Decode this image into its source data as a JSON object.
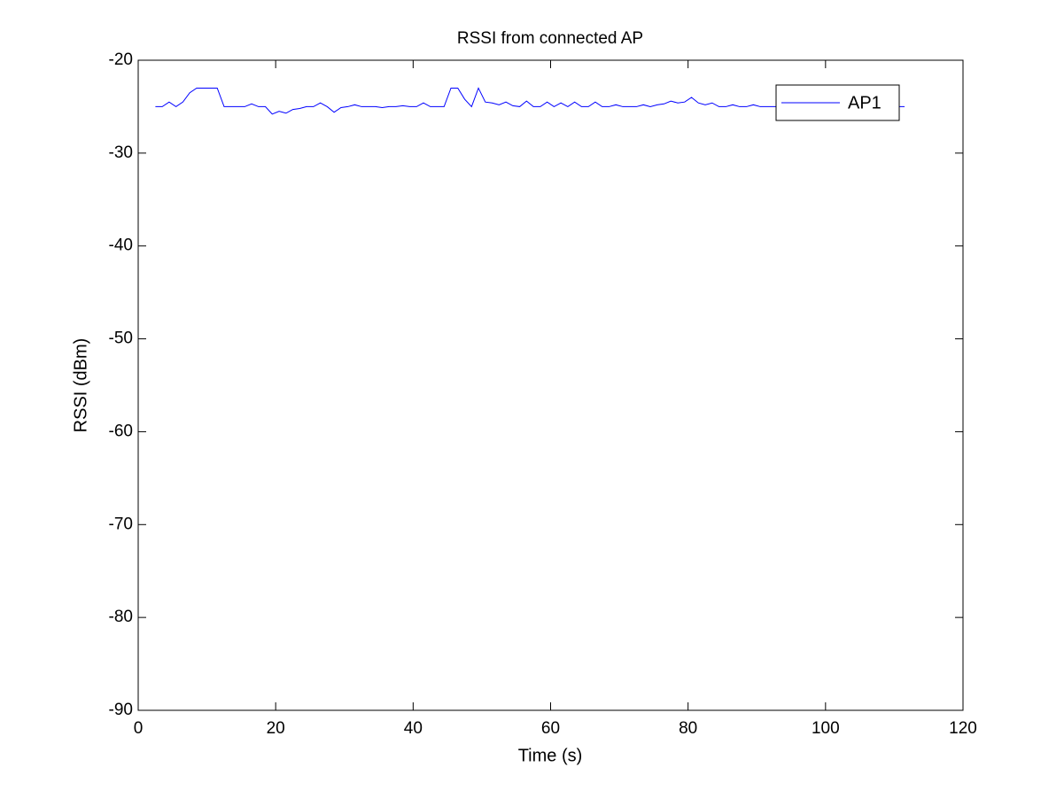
{
  "chart_data": {
    "type": "line",
    "title": "RSSI from connected AP",
    "xlabel": "Time (s)",
    "ylabel": "RSSI (dBm)",
    "x": [
      2.5,
      3.5,
      4.5,
      5.5,
      6.5,
      7.5,
      8.5,
      9.5,
      10.5,
      11.5,
      12.5,
      13.5,
      14.5,
      15.5,
      16.5,
      17.5,
      18.5,
      19.5,
      20.5,
      21.5,
      22.5,
      23.5,
      24.5,
      25.5,
      26.5,
      27.5,
      28.5,
      29.5,
      30.5,
      31.5,
      32.5,
      33.5,
      34.5,
      35.5,
      36.5,
      37.5,
      38.5,
      39.5,
      40.5,
      41.5,
      42.5,
      43.5,
      44.5,
      45.5,
      46.5,
      47.5,
      48.5,
      49.5,
      50.5,
      51.5,
      52.5,
      53.5,
      54.5,
      55.5,
      56.5,
      57.5,
      58.5,
      59.5,
      60.5,
      61.5,
      62.5,
      63.5,
      64.5,
      65.5,
      66.5,
      67.5,
      68.5,
      69.5,
      70.5,
      71.5,
      72.5,
      73.5,
      74.5,
      75.5,
      76.5,
      77.5,
      78.5,
      79.5,
      80.5,
      81.5,
      82.5,
      83.5,
      84.5,
      85.5,
      86.5,
      87.5,
      88.5,
      89.5,
      90.5,
      91.5,
      92.5,
      93.5,
      94.5,
      95.5,
      96.5,
      97.5,
      98.5,
      99.5,
      100.5,
      101.5,
      102.5,
      103.5,
      104.5,
      105.5,
      106.5,
      107.5,
      108.5,
      109.5,
      110.5,
      111.5
    ],
    "series": [
      {
        "name": "AP1",
        "color": "#0000ff",
        "values": [
          -25,
          -25,
          -24.5,
          -25,
          -24.5,
          -23.5,
          -23,
          -23,
          -23,
          -23,
          -25,
          -25,
          -25,
          -25,
          -24.7,
          -25,
          -25,
          -25.8,
          -25.5,
          -25.7,
          -25.3,
          -25.2,
          -25,
          -25,
          -24.6,
          -25,
          -25.6,
          -25.1,
          -25,
          -24.8,
          -25,
          -25,
          -25,
          -25.1,
          -25,
          -25,
          -24.9,
          -25,
          -25,
          -24.6,
          -25,
          -25,
          -25,
          -23,
          -23,
          -24.2,
          -25,
          -23,
          -24.5,
          -24.6,
          -24.8,
          -24.5,
          -24.9,
          -25,
          -24.4,
          -25,
          -25,
          -24.5,
          -25,
          -24.6,
          -25,
          -24.5,
          -25,
          -25,
          -24.5,
          -25,
          -25,
          -24.8,
          -25,
          -25,
          -25,
          -24.8,
          -25,
          -24.8,
          -24.7,
          -24.4,
          -24.6,
          -24.5,
          -24,
          -24.6,
          -24.8,
          -24.6,
          -25,
          -25,
          -24.8,
          -25,
          -25,
          -24.8,
          -25,
          -25,
          -25,
          -25,
          -25,
          -25,
          -25,
          -25,
          -25,
          -25,
          -25,
          -25,
          -25,
          -25,
          -25,
          -25,
          -25,
          -25,
          -25,
          -25,
          -25,
          -25
        ]
      }
    ],
    "xlim": [
      0,
      120
    ],
    "xticks": [
      0,
      20,
      40,
      60,
      80,
      100,
      120
    ],
    "ylim": [
      -90,
      -20
    ],
    "yticks": [
      -90,
      -80,
      -70,
      -60,
      -50,
      -40,
      -30,
      -20
    ],
    "grid": false,
    "legend": "northeast"
  }
}
